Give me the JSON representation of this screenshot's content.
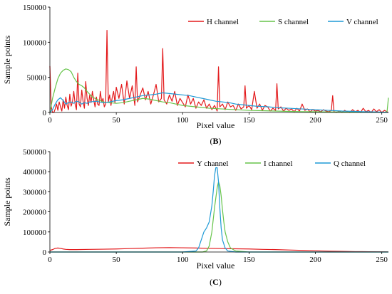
{
  "chart_data": [
    {
      "panel": "B",
      "type": "line",
      "xlabel": "Pixel value",
      "ylabel": "Sample points",
      "xlim": [
        0,
        255
      ],
      "ylim": [
        0,
        150000
      ],
      "xticks": [
        "0",
        "50",
        "100",
        "150",
        "200",
        "250"
      ],
      "yticks": [
        "0",
        "50000",
        "100000",
        "150000"
      ],
      "legend_position": "top-right",
      "grid": false,
      "series": [
        {
          "name": "H channel",
          "color": "#e31a1c",
          "x": [
            0,
            1,
            2,
            3,
            4,
            5,
            6,
            7,
            8,
            9,
            10,
            11,
            12,
            13,
            14,
            15,
            16,
            17,
            18,
            19,
            20,
            21,
            22,
            23,
            24,
            25,
            26,
            27,
            28,
            29,
            30,
            31,
            32,
            33,
            34,
            35,
            36,
            37,
            38,
            39,
            40,
            41,
            42,
            43,
            44,
            45,
            46,
            47,
            48,
            49,
            50,
            52,
            54,
            56,
            58,
            60,
            62,
            64,
            65,
            66,
            68,
            70,
            72,
            74,
            76,
            78,
            80,
            82,
            84,
            85,
            86,
            88,
            90,
            92,
            94,
            96,
            98,
            100,
            102,
            104,
            106,
            108,
            110,
            112,
            114,
            116,
            118,
            120,
            122,
            124,
            126,
            127,
            128,
            130,
            132,
            134,
            136,
            138,
            140,
            142,
            144,
            146,
            147,
            148,
            150,
            152,
            154,
            156,
            158,
            160,
            162,
            164,
            166,
            168,
            170,
            171,
            172,
            174,
            176,
            178,
            180,
            182,
            184,
            186,
            188,
            190,
            192,
            194,
            196,
            198,
            200,
            202,
            204,
            206,
            208,
            210,
            212,
            213,
            214,
            216,
            218,
            220,
            222,
            224,
            226,
            228,
            230,
            232,
            234,
            236,
            238,
            240,
            242,
            244,
            246,
            248,
            250,
            252,
            254,
            255
          ],
          "values": [
            66000,
            8000,
            0,
            0,
            5000,
            12000,
            3000,
            15000,
            8000,
            2000,
            18000,
            6000,
            22000,
            10000,
            4000,
            26000,
            9000,
            15000,
            30000,
            12000,
            4000,
            56000,
            12000,
            8000,
            32000,
            16000,
            6000,
            44000,
            20000,
            10000,
            25000,
            14000,
            30000,
            18000,
            8000,
            22000,
            12000,
            10000,
            30000,
            15000,
            20000,
            8000,
            12000,
            117000,
            15000,
            25000,
            10000,
            22000,
            30000,
            14000,
            36000,
            20000,
            40000,
            12000,
            45000,
            20000,
            38000,
            10000,
            65000,
            15000,
            25000,
            35000,
            18000,
            30000,
            12000,
            25000,
            40000,
            15000,
            20000,
            91000,
            18000,
            12000,
            25000,
            16000,
            30000,
            10000,
            20000,
            14000,
            8000,
            25000,
            12000,
            20000,
            6000,
            15000,
            10000,
            18000,
            6000,
            12000,
            4000,
            10000,
            2000,
            65000,
            8000,
            12000,
            4000,
            15000,
            8000,
            10000,
            3000,
            12000,
            5000,
            8000,
            38000,
            6000,
            10000,
            4000,
            30000,
            6000,
            12000,
            3000,
            10000,
            8000,
            2000,
            6000,
            3000,
            41000,
            5000,
            8000,
            2000,
            6000,
            3000,
            5000,
            1000,
            6000,
            2000,
            12000,
            3000,
            5000,
            1000,
            4000,
            2000,
            3000,
            1000,
            4000,
            2000,
            1000,
            3000,
            24000,
            1000,
            0,
            2000,
            0,
            3000,
            1000,
            0,
            4000,
            1000,
            3000,
            0,
            6000,
            1000,
            3000,
            0,
            5000,
            1000,
            4000,
            0,
            3000,
            1000,
            0
          ]
        },
        {
          "name": "S channel",
          "color": "#66c44a",
          "x": [
            0,
            2,
            4,
            6,
            8,
            10,
            12,
            14,
            16,
            18,
            20,
            22,
            24,
            26,
            28,
            30,
            32,
            34,
            36,
            38,
            40,
            45,
            50,
            55,
            60,
            65,
            70,
            75,
            80,
            85,
            90,
            95,
            100,
            110,
            120,
            130,
            140,
            150,
            160,
            170,
            180,
            190,
            200,
            210,
            220,
            230,
            240,
            250,
            253,
            254,
            255
          ],
          "values": [
            0,
            20000,
            35000,
            48000,
            56000,
            60000,
            62000,
            61000,
            58000,
            50000,
            44000,
            40000,
            38000,
            35000,
            30000,
            26000,
            22000,
            20000,
            18000,
            17000,
            15000,
            14000,
            13000,
            14000,
            16000,
            18000,
            20000,
            19000,
            17000,
            15000,
            14000,
            12000,
            10000,
            8000,
            6000,
            5000,
            4000,
            3000,
            2500,
            2000,
            1500,
            1200,
            1000,
            800,
            600,
            500,
            400,
            300,
            300,
            2000,
            21000
          ]
        },
        {
          "name": "V channel",
          "color": "#1e9ad6",
          "x": [
            0,
            2,
            4,
            6,
            8,
            10,
            12,
            14,
            16,
            18,
            20,
            22,
            24,
            26,
            28,
            30,
            35,
            40,
            45,
            50,
            55,
            60,
            65,
            70,
            75,
            80,
            85,
            90,
            95,
            100,
            105,
            110,
            115,
            120,
            125,
            130,
            135,
            140,
            145,
            150,
            155,
            160,
            165,
            170,
            175,
            180,
            185,
            190,
            195,
            200,
            205,
            210,
            215,
            220,
            225,
            230,
            235,
            240,
            245,
            250,
            255
          ],
          "values": [
            0,
            4000,
            12000,
            18000,
            21000,
            17000,
            12000,
            14000,
            15000,
            13000,
            16000,
            15000,
            12000,
            14000,
            13000,
            15000,
            16000,
            14000,
            15000,
            17000,
            18000,
            20000,
            22000,
            24000,
            25000,
            26000,
            28000,
            27000,
            26000,
            25000,
            24000,
            22000,
            20000,
            18000,
            16000,
            15000,
            14000,
            12000,
            11000,
            10000,
            9000,
            8500,
            8000,
            7000,
            6500,
            6000,
            5500,
            5000,
            4500,
            4000,
            3500,
            3000,
            2500,
            2000,
            1800,
            1500,
            1200,
            1000,
            800,
            500,
            0
          ]
        }
      ]
    },
    {
      "panel": "C",
      "type": "line",
      "xlabel": "Pixel value",
      "ylabel": "Sample points",
      "xlim": [
        0,
        255
      ],
      "ylim": [
        0,
        500000
      ],
      "xticks": [
        "0",
        "50",
        "100",
        "150",
        "200",
        "250"
      ],
      "yticks": [
        "0",
        "100000",
        "200000",
        "300000",
        "400000",
        "500000"
      ],
      "legend_position": "top-right",
      "grid": false,
      "series": [
        {
          "name": "Y channel",
          "color": "#e31a1c",
          "x": [
            0,
            2,
            4,
            6,
            8,
            10,
            12,
            15,
            20,
            30,
            40,
            50,
            60,
            70,
            80,
            90,
            100,
            110,
            120,
            130,
            140,
            150,
            160,
            170,
            180,
            190,
            200,
            210,
            220,
            230,
            240,
            250,
            255
          ],
          "values": [
            8000,
            12000,
            18000,
            20000,
            18000,
            15000,
            13000,
            12000,
            12000,
            13000,
            14000,
            15000,
            17000,
            19000,
            21000,
            22000,
            21000,
            20000,
            18000,
            17000,
            16000,
            15000,
            13000,
            12000,
            10000,
            8000,
            6000,
            4000,
            3000,
            2000,
            1500,
            1000,
            500
          ]
        },
        {
          "name": "I channel",
          "color": "#66c44a",
          "x": [
            0,
            50,
            100,
            115,
            118,
            120,
            122,
            124,
            126,
            127,
            128,
            129,
            130,
            131,
            132,
            134,
            136,
            140,
            150,
            200,
            255
          ],
          "values": [
            0,
            0,
            0,
            0,
            5000,
            30000,
            100000,
            220000,
            320000,
            350000,
            330000,
            280000,
            210000,
            150000,
            100000,
            50000,
            20000,
            5000,
            0,
            0,
            0
          ]
        },
        {
          "name": "Q channel",
          "color": "#1e9ad6",
          "x": [
            0,
            50,
            100,
            110,
            112,
            114,
            116,
            118,
            120,
            121,
            122,
            123,
            124,
            125,
            126,
            127,
            128,
            129,
            130,
            132,
            134,
            140,
            150,
            200,
            255
          ],
          "values": [
            0,
            0,
            0,
            5000,
            20000,
            60000,
            100000,
            120000,
            150000,
            190000,
            230000,
            300000,
            380000,
            420000,
            420000,
            350000,
            220000,
            120000,
            60000,
            20000,
            5000,
            0,
            0,
            0,
            0
          ]
        }
      ]
    }
  ]
}
